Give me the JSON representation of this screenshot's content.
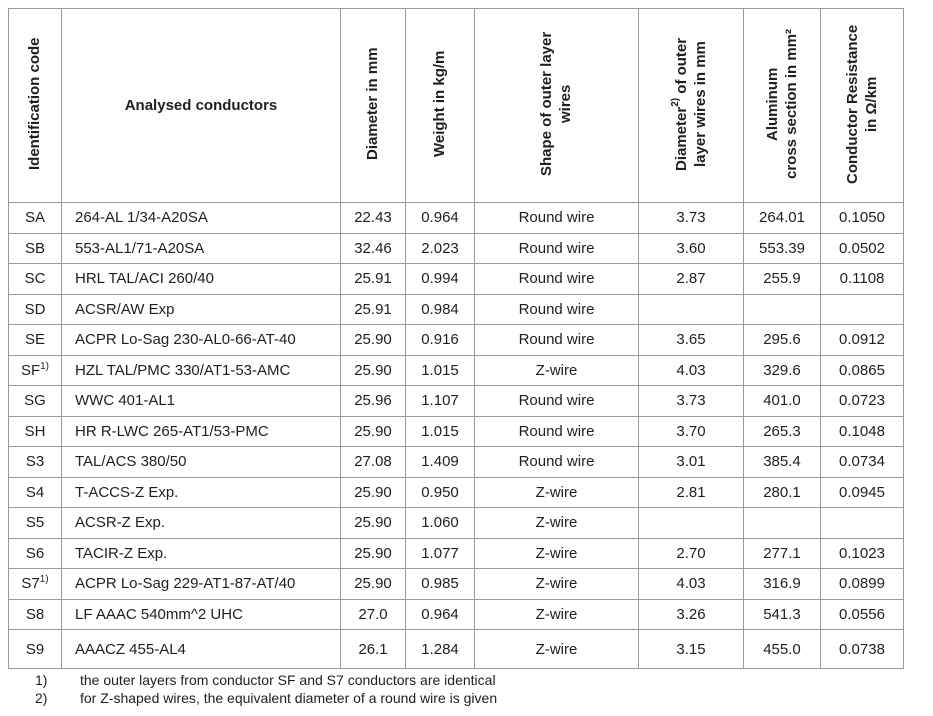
{
  "table": {
    "columns": [
      {
        "label": "Identification code"
      },
      {
        "label": "Analysed conductors"
      },
      {
        "label": "Diameter in mm"
      },
      {
        "label": "Weight in kg/m"
      },
      {
        "label": "Shape of outer layer\nwires"
      },
      {
        "pre": "Diameter",
        "sup": "2)",
        "post": " of outer\nlayer wires in mm"
      },
      {
        "label": "Aluminum\ncross section  in mm²"
      },
      {
        "label": "Conductor Resistance\nin Ω/km"
      }
    ],
    "rows": [
      {
        "id": "SA",
        "id_sup": "",
        "conductor": "264-AL 1/34-A20SA",
        "diameter": "22.43",
        "weight": "0.964",
        "shape": "Round wire",
        "outer_diameter": "3.73",
        "cross_section": "264.01",
        "resistance": "0.1050"
      },
      {
        "id": "SB",
        "id_sup": "",
        "conductor": "553-AL1/71-A20SA",
        "diameter": "32.46",
        "weight": "2.023",
        "shape": "Round wire",
        "outer_diameter": "3.60",
        "cross_section": "553.39",
        "resistance": "0.0502"
      },
      {
        "id": "SC",
        "id_sup": "",
        "conductor": "HRL TAL/ACI 260/40",
        "diameter": "25.91",
        "weight": "0.994",
        "shape": "Round wire",
        "outer_diameter": "2.87",
        "cross_section": "255.9",
        "resistance": "0.1108"
      },
      {
        "id": "SD",
        "id_sup": "",
        "conductor": "ACSR/AW Exp",
        "diameter": "25.91",
        "weight": "0.984",
        "shape": "Round wire",
        "outer_diameter": "",
        "cross_section": "",
        "resistance": ""
      },
      {
        "id": "SE",
        "id_sup": "",
        "conductor": "ACPR Lo-Sag 230-AL0-66-AT-40",
        "diameter": "25.90",
        "weight": "0.916",
        "shape": "Round wire",
        "outer_diameter": "3.65",
        "cross_section": "295.6",
        "resistance": "0.0912"
      },
      {
        "id": "SF",
        "id_sup": "1)",
        "conductor": "HZL TAL/PMC 330/AT1-53-AMC",
        "diameter": "25.90",
        "weight": "1.015",
        "shape": "Z-wire",
        "outer_diameter": "4.03",
        "cross_section": "329.6",
        "resistance": "0.0865"
      },
      {
        "id": "SG",
        "id_sup": "",
        "conductor": "WWC 401-AL1",
        "diameter": "25.96",
        "weight": "1.107",
        "shape": "Round wire",
        "outer_diameter": "3.73",
        "cross_section": "401.0",
        "resistance": "0.0723"
      },
      {
        "id": "SH",
        "id_sup": "",
        "conductor": "HR R-LWC 265-AT1/53-PMC",
        "diameter": "25.90",
        "weight": "1.015",
        "shape": "Round wire",
        "outer_diameter": "3.70",
        "cross_section": "265.3",
        "resistance": "0.1048"
      },
      {
        "id": "S3",
        "id_sup": "",
        "conductor": "TAL/ACS 380/50",
        "diameter": "27.08",
        "weight": "1.409",
        "shape": "Round wire",
        "outer_diameter": "3.01",
        "cross_section": "385.4",
        "resistance": "0.0734"
      },
      {
        "id": "S4",
        "id_sup": "",
        "conductor": "T-ACCS-Z Exp.",
        "diameter": "25.90",
        "weight": "0.950",
        "shape": "Z-wire",
        "outer_diameter": "2.81",
        "cross_section": "280.1",
        "resistance": "0.0945"
      },
      {
        "id": "S5",
        "id_sup": "",
        "conductor": "ACSR-Z Exp.",
        "diameter": "25.90",
        "weight": "1.060",
        "shape": "Z-wire",
        "outer_diameter": "",
        "cross_section": "",
        "resistance": ""
      },
      {
        "id": "S6",
        "id_sup": "",
        "conductor": "TACIR-Z Exp.",
        "diameter": "25.90",
        "weight": "1.077",
        "shape": "Z-wire",
        "outer_diameter": "2.70",
        "cross_section": "277.1",
        "resistance": "0.1023"
      },
      {
        "id": "S7",
        "id_sup": "1)",
        "conductor": "ACPR Lo-Sag 229-AT1-87-AT/40",
        "diameter": "25.90",
        "weight": "0.985",
        "shape": "Z-wire",
        "outer_diameter": "4.03",
        "cross_section": "316.9",
        "resistance": "0.0899"
      },
      {
        "id": "S8",
        "id_sup": "",
        "conductor": "LF AAAC 540mm^2 UHC",
        "diameter": "27.0",
        "weight": "0.964",
        "shape": "Z-wire",
        "outer_diameter": "3.26",
        "cross_section": "541.3",
        "resistance": "0.0556"
      },
      {
        "id": "S9",
        "id_sup": "",
        "conductor": "AAACZ 455-AL4",
        "diameter": "26.1",
        "weight": "1.284",
        "shape": "Z-wire",
        "outer_diameter": "3.15",
        "cross_section": "455.0",
        "resistance": "0.0738"
      }
    ]
  },
  "footnotes": [
    {
      "marker": "1)",
      "text": "the outer layers from conductor SF and S7 conductors are identical"
    },
    {
      "marker": "2)",
      "text": "for Z-shaped wires, the equivalent diameter of a round wire is given"
    }
  ],
  "colors": {
    "border": "#9a9a9a",
    "text": "#1f1f1f",
    "background": "#ffffff"
  }
}
